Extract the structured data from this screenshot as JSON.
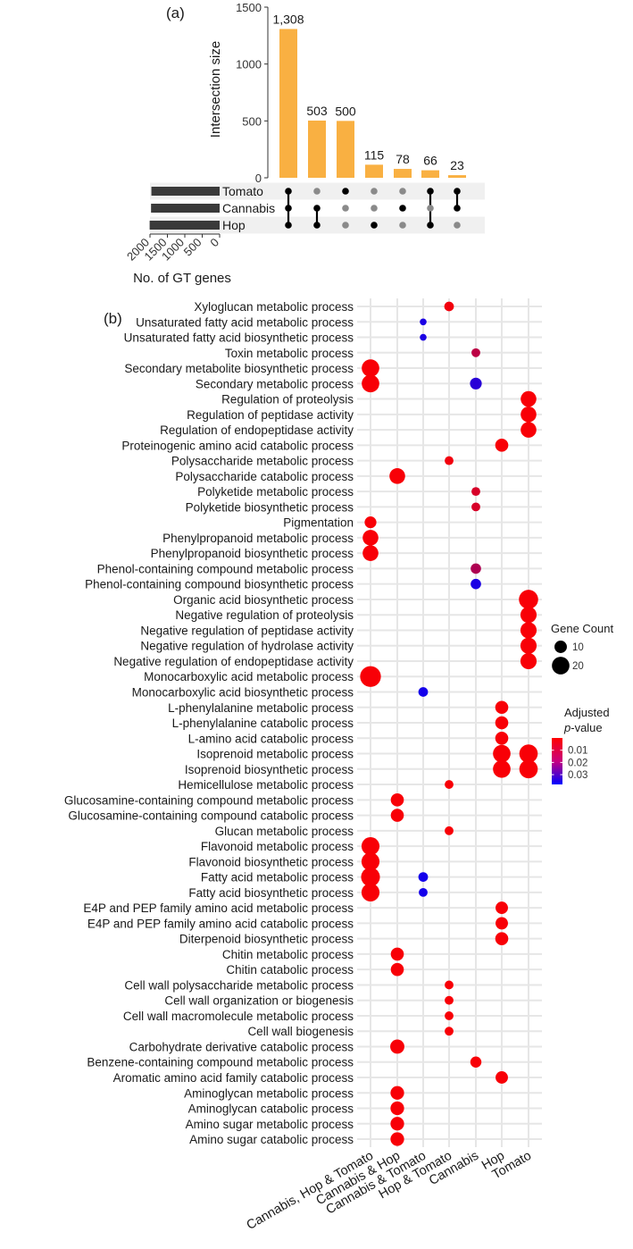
{
  "chart_data": [
    {
      "panel": "(a)",
      "type": "bar",
      "subtype": "upset",
      "ylabel": "Intersection size",
      "ylim": [
        0,
        1500
      ],
      "yticks": [
        0,
        500,
        1000,
        1500
      ],
      "values": [
        1308,
        503,
        500,
        115,
        78,
        66,
        23
      ],
      "value_labels": [
        "1,308",
        "503",
        "500",
        "115",
        "78",
        "66",
        "23"
      ],
      "bar_color": "#F9B042",
      "sets": [
        "Tomato",
        "Cannabis",
        "Hop"
      ],
      "membership": [
        [
          1,
          1,
          1
        ],
        [
          0,
          1,
          1
        ],
        [
          1,
          0,
          0
        ],
        [
          0,
          0,
          1
        ],
        [
          0,
          1,
          0
        ],
        [
          1,
          0,
          1
        ],
        [
          1,
          1,
          0
        ]
      ],
      "set_size_axis_label": "No. of GT genes",
      "set_size_ticks": [
        2000,
        1500,
        1000,
        500,
        0
      ],
      "set_sizes_approx": [
        1960,
        1970,
        2010
      ]
    },
    {
      "panel": "(b)",
      "type": "scatter",
      "subtype": "dotplot",
      "categories": [
        "Cannabis, Hop & Tomato",
        "Cannabis & Hop",
        "Cannabis & Tomato",
        "Hop & Tomato",
        "Cannabis",
        "Hop",
        "Tomato"
      ],
      "terms": [
        "Xyloglucan metabolic process",
        "Unsaturated fatty acid metabolic process",
        "Unsaturated fatty acid biosynthetic process",
        "Toxin metabolic process",
        "Secondary metabolite biosynthetic process",
        "Secondary metabolic process",
        "Regulation of proteolysis",
        "Regulation of peptidase activity",
        "Regulation of endopeptidase activity",
        "Proteinogenic amino acid catabolic process",
        "Polysaccharide metabolic process",
        "Polysaccharide catabolic process",
        "Polyketide metabolic process",
        "Polyketide biosynthetic process",
        "Pigmentation",
        "Phenylpropanoid metabolic process",
        "Phenylpropanoid biosynthetic process",
        "Phenol-containing compound metabolic process",
        "Phenol-containing compound biosynthetic process",
        "Organic acid biosynthetic process",
        "Negative regulation of proteolysis",
        "Negative regulation of peptidase activity",
        "Negative regulation of hydrolase activity",
        "Negative regulation of endopeptidase activity",
        "Monocarboxylic acid metabolic process",
        "Monocarboxylic acid biosynthetic process",
        "L-phenylalanine metabolic process",
        "L-phenylalanine catabolic process",
        "L-amino acid catabolic process",
        "Isoprenoid metabolic process",
        "Isoprenoid biosynthetic process",
        "Hemicellulose metabolic process",
        "Glucosamine-containing compound metabolic process",
        "Glucosamine-containing compound catabolic process",
        "Glucan metabolic process",
        "Flavonoid metabolic process",
        "Flavonoid biosynthetic process",
        "Fatty acid metabolic process",
        "Fatty acid biosynthetic process",
        "E4P and PEP family amino acid metabolic process",
        "E4P and PEP family amino acid catabolic process",
        "Diterpenoid biosynthetic process",
        "Chitin metabolic process",
        "Chitin catabolic process",
        "Cell wall polysaccharide metabolic process",
        "Cell wall organization or biogenesis",
        "Cell wall macromolecule metabolic process",
        "Cell wall biogenesis",
        "Carbohydrate derivative catabolic process",
        "Benzene-containing compound metabolic process",
        "Aromatic amino acid family catabolic process",
        "Aminoglycan metabolic process",
        "Aminoglycan catabolic process",
        "Amino sugar metabolic process",
        "Amino sugar catabolic process"
      ],
      "points": [
        {
          "term": 0,
          "cat": 3,
          "count": 6,
          "padj": 0.002
        },
        {
          "term": 1,
          "cat": 2,
          "count": 3,
          "padj": 0.034
        },
        {
          "term": 2,
          "cat": 2,
          "count": 3,
          "padj": 0.034
        },
        {
          "term": 3,
          "cat": 4,
          "count": 5,
          "padj": 0.01
        },
        {
          "term": 4,
          "cat": 0,
          "count": 20,
          "padj": 0.001
        },
        {
          "term": 5,
          "cat": 0,
          "count": 20,
          "padj": 0.001
        },
        {
          "term": 5,
          "cat": 4,
          "count": 9,
          "padj": 0.032
        },
        {
          "term": 6,
          "cat": 6,
          "count": 16,
          "padj": 0.001
        },
        {
          "term": 7,
          "cat": 6,
          "count": 16,
          "padj": 0.001
        },
        {
          "term": 8,
          "cat": 6,
          "count": 16,
          "padj": 0.001
        },
        {
          "term": 9,
          "cat": 5,
          "count": 11,
          "padj": 0.001
        },
        {
          "term": 10,
          "cat": 3,
          "count": 5,
          "padj": 0.002
        },
        {
          "term": 11,
          "cat": 1,
          "count": 16,
          "padj": 0.001
        },
        {
          "term": 12,
          "cat": 4,
          "count": 5,
          "padj": 0.006
        },
        {
          "term": 13,
          "cat": 4,
          "count": 5,
          "padj": 0.006
        },
        {
          "term": 14,
          "cat": 0,
          "count": 9,
          "padj": 0.001
        },
        {
          "term": 15,
          "cat": 0,
          "count": 16,
          "padj": 0.001
        },
        {
          "term": 16,
          "cat": 0,
          "count": 16,
          "padj": 0.001
        },
        {
          "term": 17,
          "cat": 4,
          "count": 7,
          "padj": 0.012
        },
        {
          "term": 18,
          "cat": 4,
          "count": 7,
          "padj": 0.034
        },
        {
          "term": 19,
          "cat": 6,
          "count": 24,
          "padj": 0.001
        },
        {
          "term": 20,
          "cat": 6,
          "count": 17,
          "padj": 0.001
        },
        {
          "term": 21,
          "cat": 6,
          "count": 17,
          "padj": 0.001
        },
        {
          "term": 22,
          "cat": 6,
          "count": 17,
          "padj": 0.001
        },
        {
          "term": 23,
          "cat": 6,
          "count": 17,
          "padj": 0.001
        },
        {
          "term": 24,
          "cat": 0,
          "count": 28,
          "padj": 0.001
        },
        {
          "term": 25,
          "cat": 2,
          "count": 6,
          "padj": 0.035
        },
        {
          "term": 26,
          "cat": 5,
          "count": 11,
          "padj": 0.001
        },
        {
          "term": 27,
          "cat": 5,
          "count": 11,
          "padj": 0.001
        },
        {
          "term": 28,
          "cat": 5,
          "count": 11,
          "padj": 0.001
        },
        {
          "term": 29,
          "cat": 5,
          "count": 20,
          "padj": 0.001
        },
        {
          "term": 29,
          "cat": 6,
          "count": 22,
          "padj": 0.001
        },
        {
          "term": 30,
          "cat": 5,
          "count": 20,
          "padj": 0.001
        },
        {
          "term": 30,
          "cat": 6,
          "count": 22,
          "padj": 0.001
        },
        {
          "term": 31,
          "cat": 3,
          "count": 5,
          "padj": 0.001
        },
        {
          "term": 32,
          "cat": 1,
          "count": 11,
          "padj": 0.001
        },
        {
          "term": 33,
          "cat": 1,
          "count": 11,
          "padj": 0.001
        },
        {
          "term": 34,
          "cat": 3,
          "count": 5,
          "padj": 0.001
        },
        {
          "term": 35,
          "cat": 0,
          "count": 21,
          "padj": 0.001
        },
        {
          "term": 36,
          "cat": 0,
          "count": 21,
          "padj": 0.001
        },
        {
          "term": 37,
          "cat": 0,
          "count": 23,
          "padj": 0.001
        },
        {
          "term": 37,
          "cat": 2,
          "count": 6,
          "padj": 0.035
        },
        {
          "term": 38,
          "cat": 0,
          "count": 21,
          "padj": 0.001
        },
        {
          "term": 38,
          "cat": 2,
          "count": 5,
          "padj": 0.035
        },
        {
          "term": 39,
          "cat": 5,
          "count": 10,
          "padj": 0.001
        },
        {
          "term": 40,
          "cat": 5,
          "count": 10,
          "padj": 0.001
        },
        {
          "term": 41,
          "cat": 5,
          "count": 11,
          "padj": 0.001
        },
        {
          "term": 42,
          "cat": 1,
          "count": 11,
          "padj": 0.001
        },
        {
          "term": 43,
          "cat": 1,
          "count": 11,
          "padj": 0.001
        },
        {
          "term": 44,
          "cat": 3,
          "count": 5,
          "padj": 0.001
        },
        {
          "term": 45,
          "cat": 3,
          "count": 5,
          "padj": 0.001
        },
        {
          "term": 46,
          "cat": 3,
          "count": 5,
          "padj": 0.001
        },
        {
          "term": 47,
          "cat": 3,
          "count": 5,
          "padj": 0.001
        },
        {
          "term": 48,
          "cat": 1,
          "count": 13,
          "padj": 0.001
        },
        {
          "term": 49,
          "cat": 4,
          "count": 8,
          "padj": 0.001
        },
        {
          "term": 50,
          "cat": 5,
          "count": 10,
          "padj": 0.001
        },
        {
          "term": 51,
          "cat": 1,
          "count": 12,
          "padj": 0.001
        },
        {
          "term": 52,
          "cat": 1,
          "count": 12,
          "padj": 0.001
        },
        {
          "term": 53,
          "cat": 1,
          "count": 12,
          "padj": 0.001
        },
        {
          "term": 54,
          "cat": 1,
          "count": 12,
          "padj": 0.001
        }
      ],
      "legend_size": {
        "title": "Gene Count",
        "values": [
          10,
          20
        ]
      },
      "legend_color": {
        "title_line1": "Adjusted",
        "title_line2_italic": "p",
        "title_line2_rest": "-value",
        "ticks": [
          0.01,
          0.02,
          0.03
        ],
        "range": [
          0.0,
          0.038
        ],
        "low_color": "#FF0000",
        "high_color": "#0000FF"
      }
    }
  ]
}
